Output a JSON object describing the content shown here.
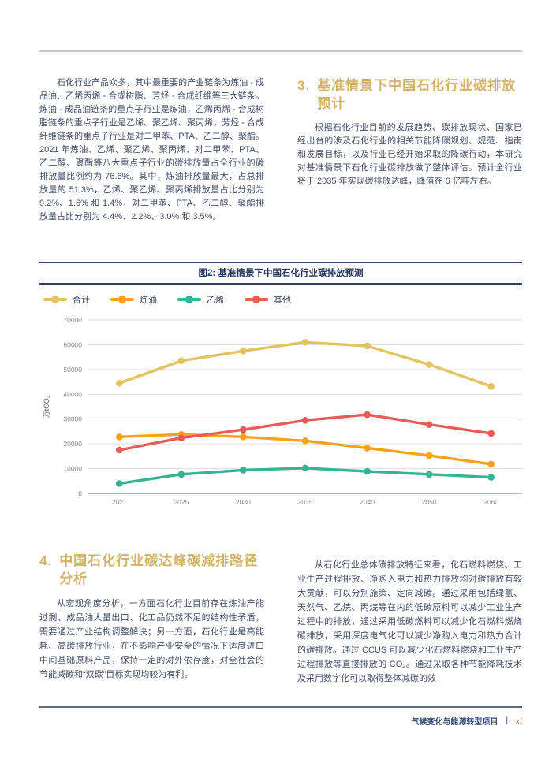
{
  "intro": {
    "paragraph": "石化行业产品众多，其中最重要的产业链条为炼油 - 成品油、乙烯丙烯 - 合成树脂、芳烃 - 合成纤维等三大链条。炼油 - 成品油链条的重点子行业是炼油，乙烯丙烯 - 合成树脂链条的重点子行业是乙烯、聚乙烯、聚丙烯，芳烃 - 合成纤维链条的重点子行业是对二甲苯、PTA、乙二醇、聚酯。2021 年炼油、乙烯、聚乙烯、聚丙烯、对二甲苯、PTA、乙二醇、聚酯等八大重点子行业的碳排放量占全行业的碳排放量比例约为 76.6%。其中，炼油排放量最大，占总排放量的 51.3%，乙烯、聚乙烯、聚丙烯排放量占比分别为 9.2%、1.6% 和 1.4%，对二甲苯、PTA、乙二醇、聚酯排放量占比分别为 4.4%、2.2%、3.0% 和 3.5%。"
  },
  "section3": {
    "number": "3.",
    "title": "基准情景下中国石化行业碳排放预计",
    "paragraph": "根据石化行业目前的发展趋势、碳排放现状、国家已经出台的涉及石化行业的相关节能降碳规划、规范、指南和发展目标，以及行业已经开始采取的降碳行动，本研究对基准情景下石化行业碳排放做了整体评估。预计全行业将于 2035 年实现碳排放达峰，峰值在 6 亿吨左右。"
  },
  "chart_data": {
    "type": "line",
    "title": "图2: 基准情景下中国石化行业碳排放预测",
    "categories": [
      "2021",
      "2025",
      "2030",
      "2035",
      "2040",
      "2050",
      "2060"
    ],
    "series": [
      {
        "name": "合计",
        "color": "#E3C360",
        "values": [
          44500,
          53500,
          57500,
          61000,
          59500,
          52000,
          43200
        ]
      },
      {
        "name": "炼油",
        "color": "#F6A21D",
        "values": [
          22800,
          23800,
          22800,
          21200,
          18300,
          15300,
          11800
        ]
      },
      {
        "name": "乙烯",
        "color": "#35B394",
        "values": [
          4000,
          7700,
          9400,
          10200,
          8900,
          7700,
          6500
        ]
      },
      {
        "name": "其他",
        "color": "#EA5A57",
        "values": [
          17500,
          22400,
          25700,
          29500,
          31800,
          27800,
          24200
        ]
      }
    ],
    "xlabel": "",
    "ylabel": "万tCO₂",
    "ylim": [
      0,
      70000
    ],
    "yticks": [
      0,
      10000,
      20000,
      30000,
      40000,
      50000,
      60000,
      70000
    ],
    "grid": true,
    "legend_position": "top-left"
  },
  "section4": {
    "number": "4.",
    "title": "中国石化行业碳达峰碳减排路径分析",
    "left_paragraph": "从宏观角度分析，一方面石化行业目前存在炼油产能过剩、成品油大量出口、化工品仍然不足的结构性矛盾，需要通过产业结构调整解决；另一方面，石化行业是高能耗、高碳排放行业，在不影响产业安全的情况下适度进口中间基础原料产品，保持一定的对外依存度，对全社会的节能减碳和“双碳”目标实现均较为有利。",
    "right_paragraph": "从石化行业总体碳排放特征来看，化石燃料燃烧、工业生产过程排放、净购入电力和热力排放均对碳排放有较大贡献，可以分别施策、定向减碳。通过采用包括绿氢、天然气、乙烷、丙烷等在内的低碳原料可以减少工业生产过程中的排放，通过采用低碳燃料可以减少化石燃料燃烧碳排放，采用深度电气化可以减少净购入电力和热力合计的碳排放。通过 CCUS 可以减少化石燃料燃烧和工业生产过程排放等直接排放的 CO₂。通过采取各种节能降耗技术及采用数字化可以取得整体减碳的效"
  },
  "footer": {
    "project": "气候变化与能源转型项目",
    "separator": "|",
    "page_number": "xi"
  }
}
